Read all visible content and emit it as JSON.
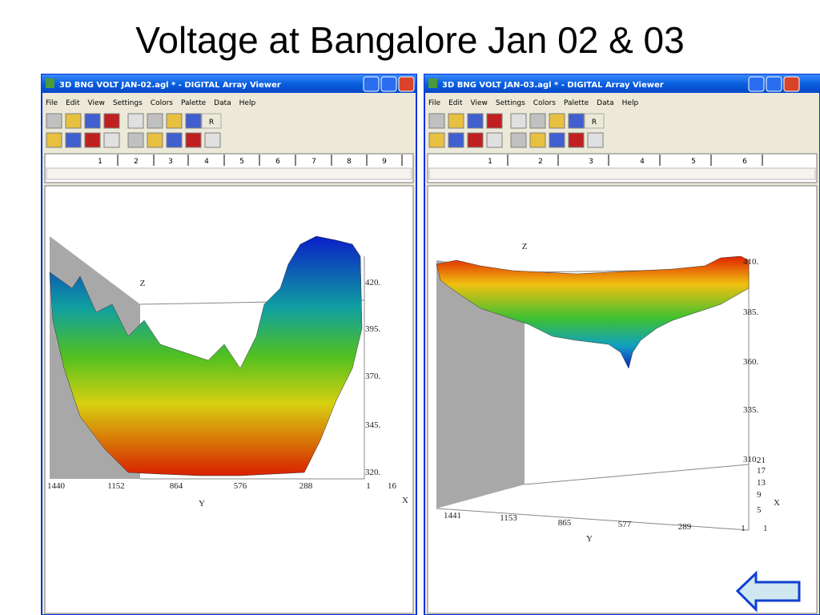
{
  "title": "Voltage at Bangalore Jan 02 & 03",
  "windows": [
    {
      "title": "3D BNG VOLT JAN-02.agl * - DIGITAL Array Viewer",
      "menu": [
        "File",
        "Edit",
        "View",
        "Settings",
        "Colors",
        "Palette",
        "Data",
        "Help"
      ],
      "toolbar_button": "R",
      "ruler": [
        "1",
        "2",
        "3",
        "4",
        "5",
        "6",
        "7",
        "8",
        "9"
      ],
      "plot": {
        "z_label": "Z",
        "y_label": "Y",
        "x_label": "X",
        "z_ticks": [
          "420.",
          "395.",
          "370.",
          "345.",
          "320."
        ],
        "y_ticks": [
          "1440",
          "1152",
          "864",
          "576",
          "288",
          "1"
        ],
        "x_ticks": [
          "16"
        ]
      }
    },
    {
      "title": "3D BNG VOLT JAN-03.agl * - DIGITAL Array Viewer",
      "menu": [
        "File",
        "Edit",
        "View",
        "Settings",
        "Colors",
        "Palette",
        "Data",
        "Help"
      ],
      "toolbar_button": "R",
      "ruler": [
        "1",
        "2",
        "3",
        "4",
        "5",
        "6"
      ],
      "plot": {
        "z_label": "Z",
        "y_label": "Y",
        "x_label": "X",
        "z_ticks": [
          "410.",
          "385.",
          "360.",
          "335.",
          "310."
        ],
        "y_ticks": [
          "1441",
          "1153",
          "865",
          "577",
          "289",
          "1"
        ],
        "x_ticks": [
          "21",
          "17",
          "13",
          "9",
          "5",
          "1"
        ]
      }
    }
  ]
}
